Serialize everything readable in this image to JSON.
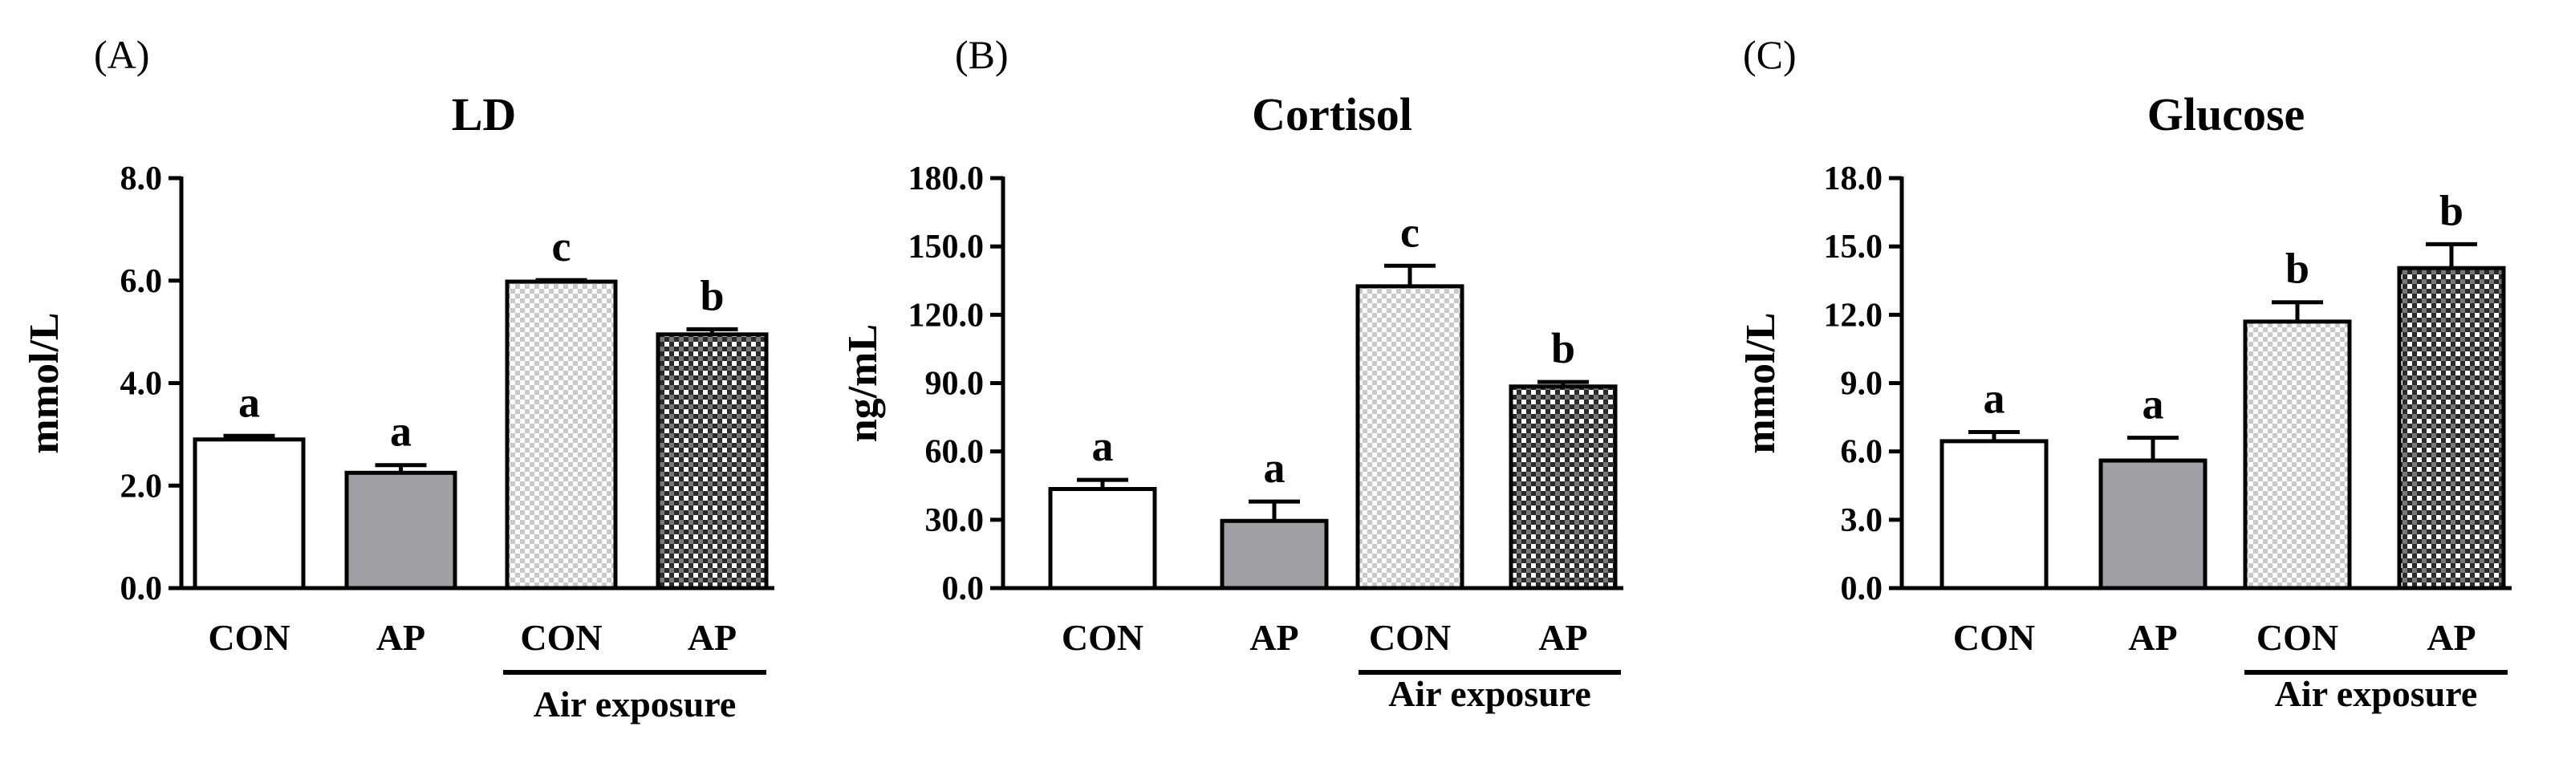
{
  "chart_data": [
    {
      "type": "bar",
      "panel_label": "(A)",
      "title": "LD",
      "ylabel": "mmol/L",
      "ylim": [
        0,
        8
      ],
      "yticks": [
        "0.0",
        "2.0",
        "4.0",
        "6.0",
        "8.0"
      ],
      "categories": [
        "CON",
        "AP",
        "CON",
        "AP"
      ],
      "group_label": "Air exposure",
      "values": [
        2.9,
        2.25,
        5.98,
        4.95
      ],
      "errors": [
        0.07,
        0.15,
        0.03,
        0.1
      ],
      "significance": [
        "a",
        "a",
        "c",
        "b"
      ],
      "fills": [
        "white",
        "gray",
        "light-checker",
        "dark-checker"
      ]
    },
    {
      "type": "bar",
      "panel_label": "(B)",
      "title": "Cortisol",
      "ylabel": "ng/mL",
      "ylim": [
        0,
        180
      ],
      "yticks": [
        "0.0",
        "30.0",
        "60.0",
        "90.0",
        "120.0",
        "150.0",
        "180.0"
      ],
      "categories": [
        "CON",
        "AP",
        "CON",
        "AP"
      ],
      "group_label": "Air exposure",
      "values": [
        43.5,
        29.5,
        132.5,
        88.5
      ],
      "errors": [
        4,
        8.5,
        9,
        2
      ],
      "significance": [
        "a",
        "a",
        "c",
        "b"
      ],
      "fills": [
        "white",
        "gray",
        "light-checker",
        "dark-checker"
      ]
    },
    {
      "type": "bar",
      "panel_label": "(C)",
      "title": "Glucose",
      "ylabel": "mmol/L",
      "ylim": [
        0,
        18
      ],
      "yticks": [
        "0.0",
        "3.0",
        "6.0",
        "9.0",
        "12.0",
        "15.0",
        "18.0"
      ],
      "categories": [
        "CON",
        "AP",
        "CON",
        "AP"
      ],
      "group_label": "Air exposure",
      "values": [
        6.45,
        5.6,
        11.7,
        14.05
      ],
      "errors": [
        0.4,
        1.0,
        0.85,
        1.05
      ],
      "significance": [
        "a",
        "a",
        "b",
        "b"
      ],
      "fills": [
        "white",
        "gray",
        "light-checker",
        "dark-checker"
      ]
    }
  ],
  "colors": {
    "gray_bar": "#a0a0a4",
    "light_checker": "#c8c8c8",
    "dark_checker": "#2a2a2a",
    "axis": "#000000"
  }
}
